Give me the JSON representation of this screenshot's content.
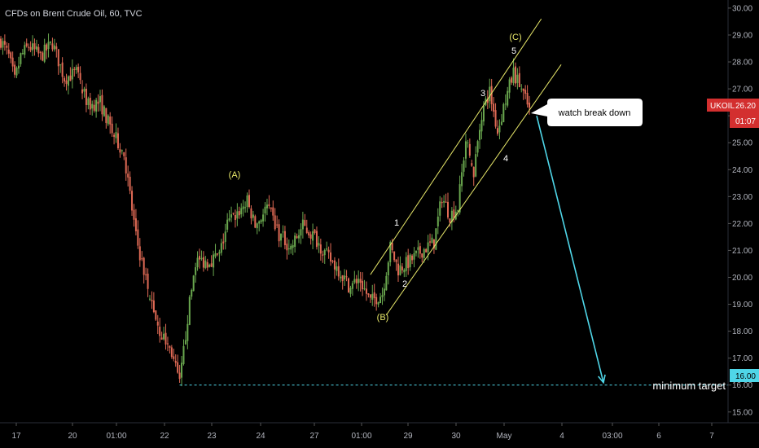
{
  "header": {
    "title": "CFDs on Brent Crude Oil, 60, TVC"
  },
  "colors": {
    "background": "#000000",
    "up": "#6aa84f",
    "down": "#e06a55",
    "channel": "#e8e86a",
    "arrow": "#4fd6e8",
    "target": "#4fd6e8",
    "price_badge": "#d32f2f"
  },
  "price_badge": {
    "symbol": "UKOIL",
    "price": "26.20",
    "countdown": "01:07"
  },
  "target_badge": {
    "price": "16.00"
  },
  "annotations": {
    "watch_note": "watch break down",
    "min_target": "minimum target",
    "wave_A": "(A)",
    "wave_B": "(B)",
    "wave_C": "(C)",
    "wave_1": "1",
    "wave_2": "2",
    "wave_3": "3",
    "wave_4": "4",
    "wave_5": "5"
  },
  "chart_data": {
    "type": "candlestick",
    "title": "CFDs on Brent Crude Oil, 60, TVC",
    "y_axis": {
      "ylim": [
        14.6,
        30.3
      ],
      "ticks": [
        "30.00",
        "29.00",
        "28.00",
        "27.00",
        "26.00",
        "25.00",
        "24.00",
        "23.00",
        "22.00",
        "21.00",
        "20.00",
        "19.00",
        "18.00",
        "17.00",
        "16.00",
        "15.00"
      ],
      "position": "right"
    },
    "x_axis": {
      "ticks": [
        "17",
        "20",
        "01:00",
        "22",
        "23",
        "24",
        "27",
        "01:00",
        "29",
        "30",
        "May",
        "4",
        "03:00",
        "6",
        "7"
      ]
    },
    "series": [
      {
        "name": "UKOIL",
        "last": 26.2
      }
    ],
    "price_path": [
      {
        "bar": 0,
        "price": 28.8
      },
      {
        "bar": 4,
        "price": 28.2
      },
      {
        "bar": 7,
        "price": 27.3
      },
      {
        "bar": 10,
        "price": 28.2
      },
      {
        "bar": 14,
        "price": 28.6
      },
      {
        "bar": 20,
        "price": 28.2
      },
      {
        "bar": 26,
        "price": 28.7
      },
      {
        "bar": 32,
        "price": 27.4
      },
      {
        "bar": 38,
        "price": 27.6
      },
      {
        "bar": 44,
        "price": 26.4
      },
      {
        "bar": 50,
        "price": 26.5
      },
      {
        "bar": 56,
        "price": 25.4
      },
      {
        "bar": 62,
        "price": 24.6
      },
      {
        "bar": 68,
        "price": 21.5
      },
      {
        "bar": 74,
        "price": 19.6
      },
      {
        "bar": 80,
        "price": 18.0
      },
      {
        "bar": 86,
        "price": 17.2
      },
      {
        "bar": 90,
        "price": 16.0
      },
      {
        "bar": 94,
        "price": 18.5
      },
      {
        "bar": 98,
        "price": 20.6
      },
      {
        "bar": 104,
        "price": 20.6
      },
      {
        "bar": 110,
        "price": 20.8
      },
      {
        "bar": 114,
        "price": 22.0
      },
      {
        "bar": 118,
        "price": 22.3
      },
      {
        "bar": 124,
        "price": 22.8
      },
      {
        "bar": 128,
        "price": 21.9
      },
      {
        "bar": 134,
        "price": 22.6
      },
      {
        "bar": 140,
        "price": 21.6
      },
      {
        "bar": 146,
        "price": 21.1
      },
      {
        "bar": 152,
        "price": 21.9
      },
      {
        "bar": 158,
        "price": 21.5
      },
      {
        "bar": 164,
        "price": 20.8
      },
      {
        "bar": 170,
        "price": 20.3
      },
      {
        "bar": 176,
        "price": 19.6
      },
      {
        "bar": 180,
        "price": 20.0
      },
      {
        "bar": 186,
        "price": 19.1
      },
      {
        "bar": 192,
        "price": 19.4
      },
      {
        "bar": 196,
        "price": 21.1
      },
      {
        "bar": 200,
        "price": 20.3
      },
      {
        "bar": 206,
        "price": 20.6
      },
      {
        "bar": 212,
        "price": 21.0
      },
      {
        "bar": 218,
        "price": 21.3
      },
      {
        "bar": 222,
        "price": 23.0
      },
      {
        "bar": 226,
        "price": 22.3
      },
      {
        "bar": 230,
        "price": 22.6
      },
      {
        "bar": 234,
        "price": 25.1
      },
      {
        "bar": 238,
        "price": 23.9
      },
      {
        "bar": 242,
        "price": 26.1
      },
      {
        "bar": 246,
        "price": 26.9
      },
      {
        "bar": 250,
        "price": 25.4
      },
      {
        "bar": 254,
        "price": 26.6
      },
      {
        "bar": 258,
        "price": 27.6
      },
      {
        "bar": 262,
        "price": 27.0
      },
      {
        "bar": 266,
        "price": 26.2
      }
    ],
    "gaps_after_bars": [
      40,
      74,
      138,
      180,
      236
    ],
    "channel": {
      "upper": [
        {
          "bar": 186,
          "price": 20.1
        },
        {
          "bar": 272,
          "price": 29.6
        }
      ],
      "lower": [
        {
          "bar": 194,
          "price": 18.6
        },
        {
          "bar": 282,
          "price": 27.9
        }
      ]
    },
    "projection": {
      "from": 26.0,
      "to": 16.0
    },
    "horizontal_line": {
      "price": 16.0,
      "label": "minimum target",
      "style": "dashed"
    }
  }
}
